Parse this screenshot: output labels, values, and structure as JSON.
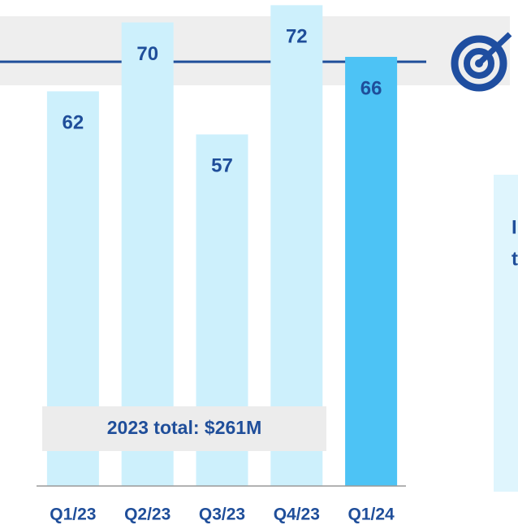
{
  "chart_data": {
    "type": "bar",
    "categories": [
      "Q1/23",
      "Q2/23",
      "Q3/23",
      "Q4/23",
      "Q1/24"
    ],
    "values": [
      62,
      70,
      57,
      72,
      66
    ],
    "colors": [
      "#cdf0fc",
      "#cdf0fc",
      "#cdf0fc",
      "#cdf0fc",
      "#4dc3f5"
    ],
    "ylim": [
      16.2,
      72.6
    ],
    "annotation": "2023 total: $261M",
    "side_text": [
      "I",
      "t"
    ]
  }
}
